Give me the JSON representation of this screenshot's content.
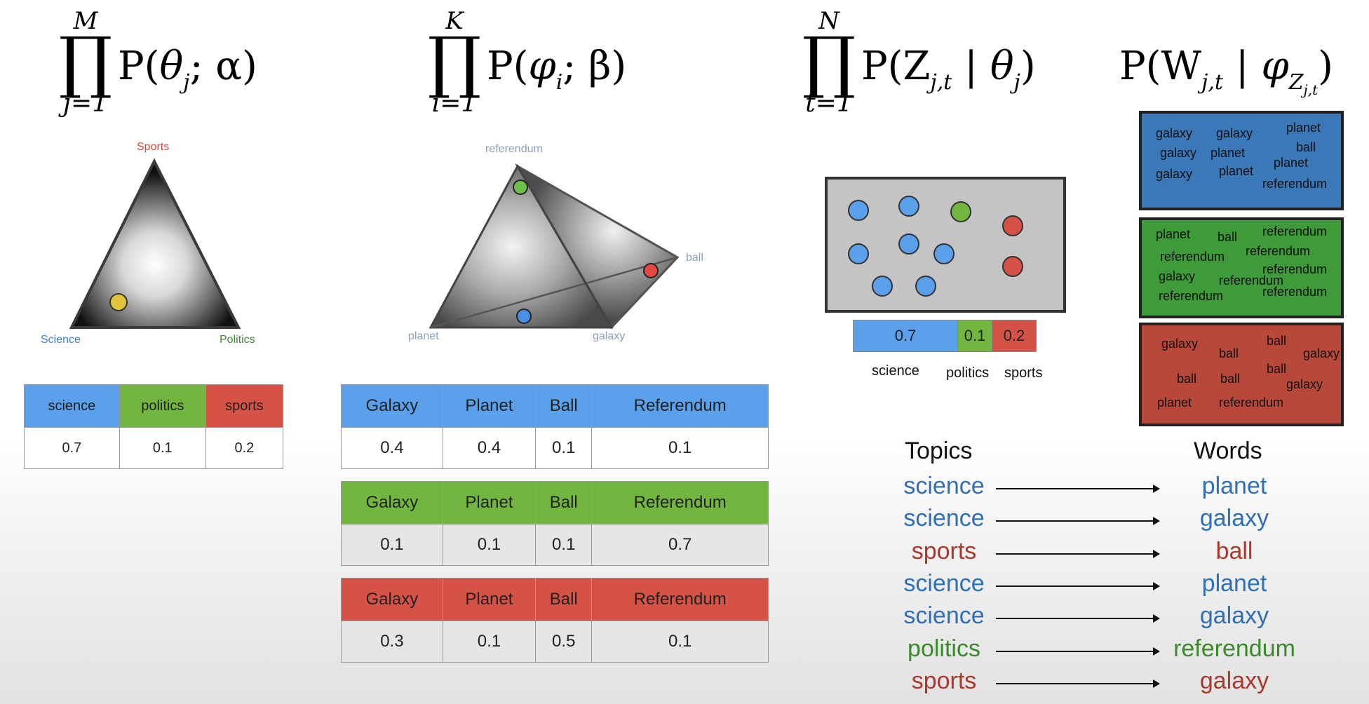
{
  "formulas": {
    "f1": {
      "upper": "M",
      "lower": "j=1",
      "expr_head": "P(",
      "expr_sym": "θ",
      "expr_sub": "j",
      "expr_rest": "; α)"
    },
    "f2": {
      "upper": "K",
      "lower": "i=1",
      "expr_head": "P(",
      "expr_sym": "φ",
      "expr_sub": "i",
      "expr_rest": "; β)"
    },
    "f3": {
      "upper": "N",
      "lower": "t=1",
      "expr_head": "P(Z",
      "expr_sub": "j,t",
      "expr_mid": " | θ",
      "expr_sub2": "j",
      "expr_rest": ")"
    },
    "f4": {
      "expr_head": "P(W",
      "expr_sub": "j,t",
      "expr_mid": " | φ",
      "expr_sub2": "Z",
      "expr_subsub": "j,t",
      "expr_rest": ")"
    }
  },
  "simplex1": {
    "top_label": "Sports",
    "left_label": "Science",
    "right_label": "Politics",
    "colors": {
      "sports": "#d0493a",
      "science": "#3d7fc9",
      "politics": "#3a8a2a",
      "point": "#e2c43a"
    }
  },
  "simplex2": {
    "top_label": "referendum",
    "right_label": "ball",
    "left_label": "planet",
    "bottom_label": "galaxy",
    "colors": {
      "label": "#8aa0b8",
      "green": "#6cc04a",
      "red": "#e04a40",
      "blue": "#4a90e2"
    }
  },
  "theta_table": {
    "headers": [
      "science",
      "politics",
      "sports"
    ],
    "values": [
      "0.7",
      "0.1",
      "0.2"
    ]
  },
  "phi_tables": [
    {
      "color": "blue",
      "headers": [
        "Galaxy",
        "Planet",
        "Ball",
        "Referendum"
      ],
      "values": [
        "0.4",
        "0.4",
        "0.1",
        "0.1"
      ]
    },
    {
      "color": "green",
      "headers": [
        "Galaxy",
        "Planet",
        "Ball",
        "Referendum"
      ],
      "values": [
        "0.1",
        "0.1",
        "0.1",
        "0.7"
      ]
    },
    {
      "color": "red",
      "headers": [
        "Galaxy",
        "Planet",
        "Ball",
        "Referendum"
      ],
      "values": [
        "0.3",
        "0.1",
        "0.5",
        "0.1"
      ]
    }
  ],
  "topic_bar": {
    "segments": [
      {
        "value": "0.7",
        "label": "science",
        "color": "#5aa0ea"
      },
      {
        "value": "0.1",
        "label": "politics",
        "color": "#72b640"
      },
      {
        "value": "0.2",
        "label": "sports",
        "color": "#d55246"
      }
    ]
  },
  "word_boxes": [
    {
      "color": "#3b78b8",
      "words": [
        "galaxy",
        "galaxy",
        "planet",
        "ball",
        "galaxy",
        "planet",
        "planet",
        "galaxy",
        "planet",
        "referendum"
      ]
    },
    {
      "color": "#3f9a3a",
      "words": [
        "planet",
        "ball",
        "referendum",
        "referendum",
        "referendum",
        "referendum",
        "galaxy",
        "referendum",
        "referendum",
        "referendum"
      ]
    },
    {
      "color": "#b8483a",
      "words": [
        "galaxy",
        "ball",
        "ball",
        "galaxy",
        "ball",
        "ball",
        "ball",
        "galaxy",
        "planet",
        "referendum"
      ]
    }
  ],
  "mapping": {
    "topics_header": "Topics",
    "words_header": "Words",
    "rows": [
      {
        "topic": "science",
        "word": "planet",
        "color": "#2f6fb5"
      },
      {
        "topic": "science",
        "word": "galaxy",
        "color": "#2f6fb5"
      },
      {
        "topic": "sports",
        "word": "ball",
        "color": "#a8392c"
      },
      {
        "topic": "science",
        "word": "planet",
        "color": "#2f6fb5"
      },
      {
        "topic": "science",
        "word": "galaxy",
        "color": "#2f6fb5"
      },
      {
        "topic": "politics",
        "word": "referendum",
        "color": "#3a8a2a"
      },
      {
        "topic": "sports",
        "word": "galaxy",
        "color": "#a8392c"
      }
    ]
  }
}
